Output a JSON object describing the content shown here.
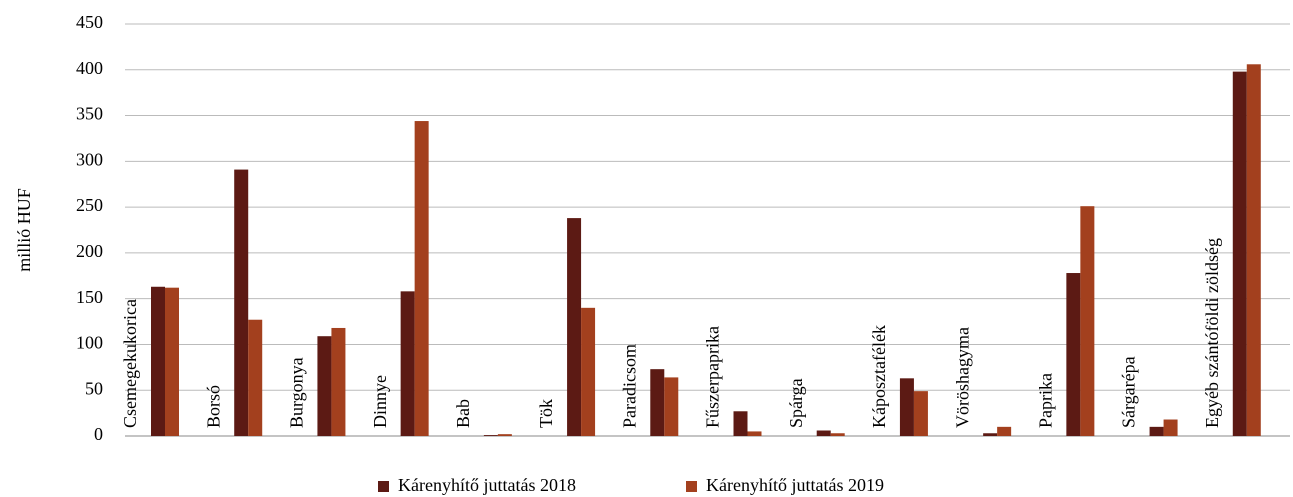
{
  "chart_data": {
    "type": "bar",
    "y_label": "millió HUF",
    "categories": [
      "Csemegekukorica",
      "Borsó",
      "Burgonya",
      "Dinnye",
      "Bab",
      "Tök",
      "Paradicsom",
      "Fűszerpaprika",
      "Spárga",
      "Káposztafélék",
      "Vöröshagyma",
      "Paprika",
      "Sárgarépa",
      "Egyéb szántóföldi zöldség"
    ],
    "series": [
      {
        "name": "Kárenyhítő juttatás 2018",
        "color": "#5c1a14",
        "values": [
          163,
          291,
          109,
          158,
          1,
          238,
          73,
          27,
          6,
          63,
          3,
          178,
          10,
          398
        ]
      },
      {
        "name": "Kárenyhítő juttatás 2019",
        "color": "#a3401e",
        "values": [
          162,
          127,
          118,
          344,
          2,
          140,
          64,
          5,
          3,
          49,
          10,
          251,
          18,
          406
        ]
      }
    ],
    "ylim": [
      0,
      450
    ],
    "yticks": [
      0,
      50,
      100,
      150,
      200,
      250,
      300,
      350,
      400,
      450
    ],
    "grid": true
  }
}
